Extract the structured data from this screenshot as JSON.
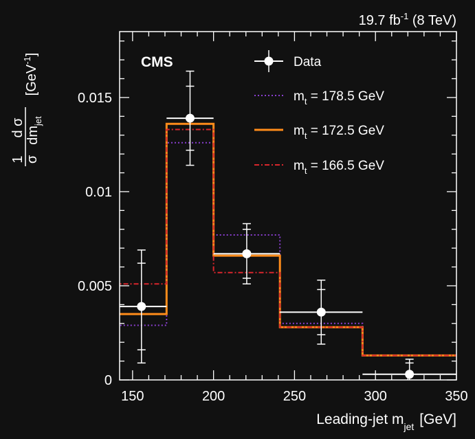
{
  "chart_data": {
    "type": "histogram",
    "lumi": {
      "main": "19.7 fb",
      "sup": "-1",
      "tail": " (8 TeV)"
    },
    "experiment_label": "CMS",
    "xlabel": {
      "main": "Leading-jet m",
      "sub": "jet",
      "unit": "[GeV]"
    },
    "ylabel": {
      "frac_num": "1",
      "frac_den": "σ",
      "dnum": "d σ",
      "dden_main": "dm",
      "dden_sub": "jet",
      "unit_main": "[GeV",
      "unit_sup": "-1",
      "unit_close": "]"
    },
    "xlim": [
      142,
      350
    ],
    "ylim": [
      0,
      0.0185
    ],
    "xticks": [
      {
        "v": 150,
        "label": "150"
      },
      {
        "v": 200,
        "label": "200"
      },
      {
        "v": 250,
        "label": "250"
      },
      {
        "v": 300,
        "label": "300"
      },
      {
        "v": 350,
        "label": "350"
      }
    ],
    "yticks": [
      {
        "v": 0,
        "label": "0"
      },
      {
        "v": 0.005,
        "label": "0.005"
      },
      {
        "v": 0.01,
        "label": "0.01"
      },
      {
        "v": 0.015,
        "label": "0.015"
      }
    ],
    "bin_edges": [
      140,
      171,
      200,
      241,
      292,
      350
    ],
    "data": {
      "name": "Data",
      "x": [
        155.5,
        185.5,
        220.5,
        266.5,
        321
      ],
      "y": [
        0.0039,
        0.0139,
        0.0067,
        0.0036,
        0.0003
      ],
      "xerr_low": [
        15.5,
        14.5,
        20.5,
        25.5,
        29
      ],
      "xerr_high": [
        15.5,
        14.5,
        20.5,
        25.5,
        29
      ],
      "yerr_stat": [
        0.0023,
        0.0017,
        0.0013,
        0.0012,
        0.0006
      ],
      "yerr_tot": [
        0.003,
        0.0025,
        0.0016,
        0.0017,
        0.0008
      ]
    },
    "series": [
      {
        "name": "m",
        "name_sub": "t",
        "name_tail": " = 178.5 GeV",
        "style": "dotted",
        "color": "#8a3fd1",
        "values": [
          0.0029,
          0.0126,
          0.0077,
          0.003,
          0.0013
        ]
      },
      {
        "name": "m",
        "name_sub": "t",
        "name_tail": " = 172.5 GeV",
        "style": "solid",
        "color": "#ff8c1a",
        "values": [
          0.0035,
          0.0136,
          0.0066,
          0.0028,
          0.0013
        ]
      },
      {
        "name": "m",
        "name_sub": "t",
        "name_tail": " = 166.5 GeV",
        "style": "dashdot",
        "color": "#d9262c",
        "values": [
          0.0051,
          0.0133,
          0.0057,
          0.0028,
          0.0013
        ]
      }
    ]
  }
}
